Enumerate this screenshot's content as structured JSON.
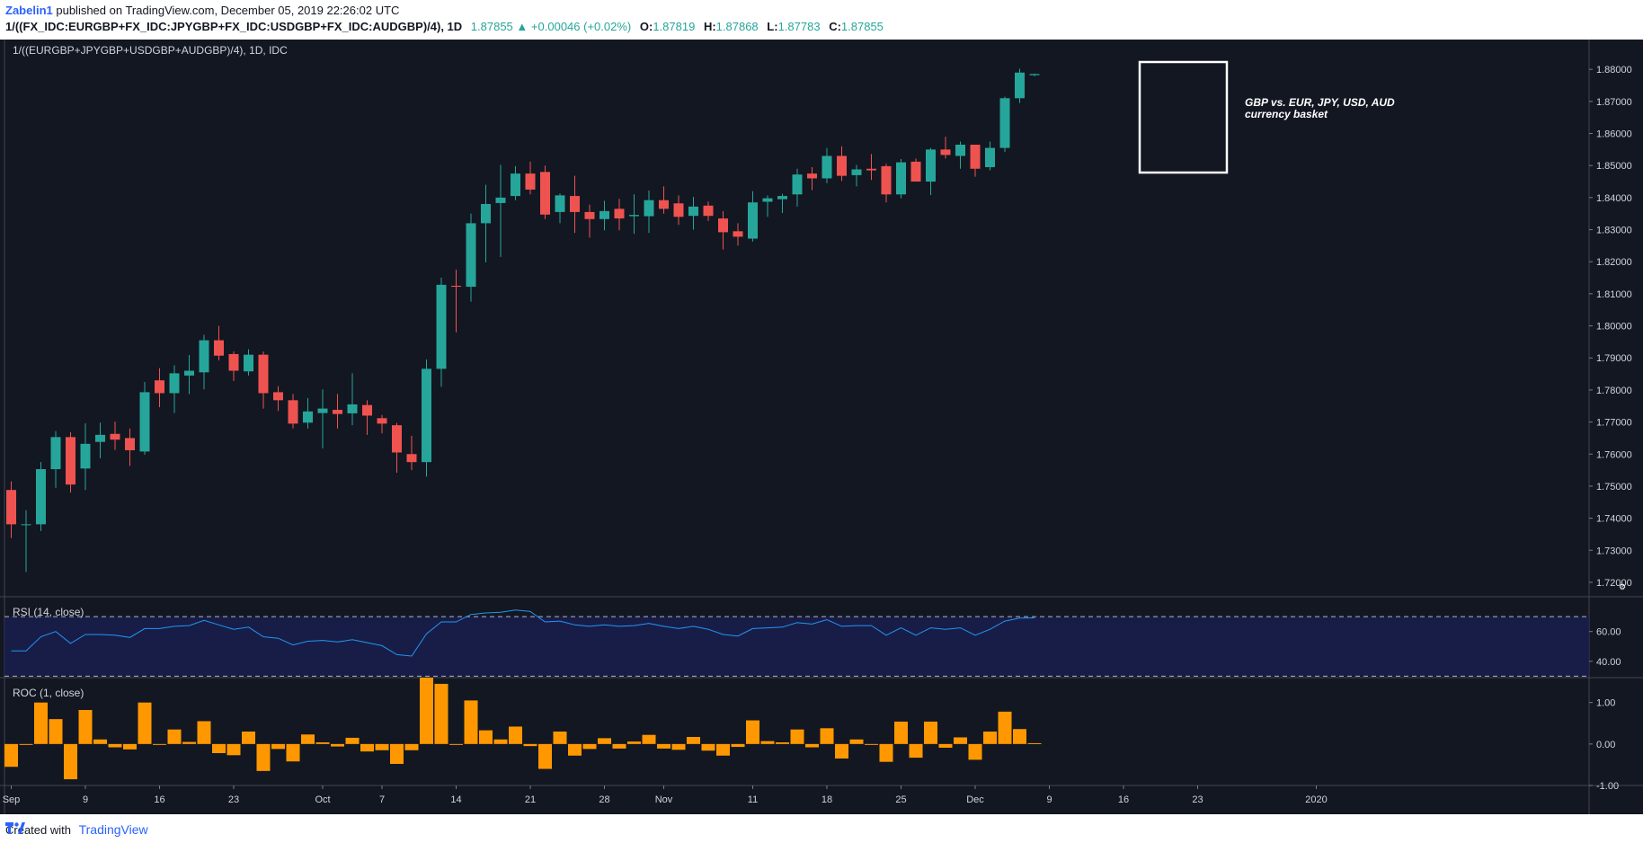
{
  "header": {
    "author": "Zabelin1",
    "published_text": " published on TradingView.com, December 05, 2019 22:26:02 UTC",
    "symbol": "1/((FX_IDC:EURGBP+FX_IDC:JPYGBP+FX_IDC:USDGBP+FX_IDC:AUDGBP)/4), 1D",
    "last": "1.87855",
    "change": "+0.00046 (+0.02%)",
    "ohlc": [
      {
        "label": "O:",
        "value": "1.87819"
      },
      {
        "label": "H:",
        "value": "1.87868"
      },
      {
        "label": "L:",
        "value": "1.87783"
      },
      {
        "label": "C:",
        "value": "1.87855"
      }
    ]
  },
  "main_pane": {
    "title": "1/((EURGBP+JPYGBP+USDGBP+AUDGBP)/4), 1D, IDC",
    "annotation": [
      "GBP vs. EUR, JPY, USD, AUD",
      "currency basket"
    ]
  },
  "rsi_pane": {
    "title": "RSI (14, close)",
    "ticks": [
      "60.00",
      "40.00"
    ]
  },
  "roc_pane": {
    "title": "ROC (1, close)",
    "ticks": [
      "1.00",
      "0.00",
      "-1.00"
    ]
  },
  "footer": {
    "created_with": "Created with",
    "brand": "TradingView"
  },
  "colors": {
    "background": "#131722",
    "up": "#26a69a",
    "down": "#ef5350",
    "rsi_line": "#2196f3",
    "roc_bars": "#ff9800"
  },
  "chart_data": [
    {
      "type": "candlestick",
      "title": "1/((EURGBP+JPYGBP+USDGBP+AUDGBP)/4), 1D, IDC",
      "x_tick_labels": [
        "Sep",
        "9",
        "16",
        "23",
        "Oct",
        "7",
        "14",
        "21",
        "28",
        "Nov",
        "11",
        "18",
        "25",
        "Dec",
        "9",
        "16",
        "23",
        "2020"
      ],
      "y_ticks": [
        1.72,
        1.73,
        1.74,
        1.75,
        1.76,
        1.77,
        1.78,
        1.79,
        1.8,
        1.81,
        1.82,
        1.83,
        1.84,
        1.85,
        1.86,
        1.87,
        1.88
      ],
      "ylim": [
        1.7155,
        1.8893
      ],
      "candles": [
        {
          "date": "2019-09-02",
          "o": 1.7488,
          "h": 1.7515,
          "l": 1.7338,
          "c": 1.7381
        },
        {
          "date": "2019-09-03",
          "o": 1.738,
          "h": 1.7425,
          "l": 1.7232,
          "c": 1.7381
        },
        {
          "date": "2019-09-04",
          "o": 1.7381,
          "h": 1.7575,
          "l": 1.736,
          "c": 1.7553
        },
        {
          "date": "2019-09-05",
          "o": 1.7553,
          "h": 1.7672,
          "l": 1.7495,
          "c": 1.7653
        },
        {
          "date": "2019-09-06",
          "o": 1.7653,
          "h": 1.7668,
          "l": 1.748,
          "c": 1.7505
        },
        {
          "date": "2019-09-09",
          "o": 1.7555,
          "h": 1.7696,
          "l": 1.7488,
          "c": 1.7632
        },
        {
          "date": "2019-09-10",
          "o": 1.7638,
          "h": 1.7698,
          "l": 1.7587,
          "c": 1.766
        },
        {
          "date": "2019-09-11",
          "o": 1.7663,
          "h": 1.7701,
          "l": 1.7613,
          "c": 1.7645
        },
        {
          "date": "2019-09-12",
          "o": 1.765,
          "h": 1.768,
          "l": 1.7563,
          "c": 1.7612
        },
        {
          "date": "2019-09-13",
          "o": 1.7608,
          "h": 1.7825,
          "l": 1.7598,
          "c": 1.7793
        },
        {
          "date": "2019-09-16",
          "o": 1.783,
          "h": 1.7868,
          "l": 1.7746,
          "c": 1.779
        },
        {
          "date": "2019-09-17",
          "o": 1.779,
          "h": 1.7877,
          "l": 1.7728,
          "c": 1.7852
        },
        {
          "date": "2019-09-18",
          "o": 1.7845,
          "h": 1.7909,
          "l": 1.7787,
          "c": 1.786
        },
        {
          "date": "2019-09-19",
          "o": 1.7855,
          "h": 1.7972,
          "l": 1.7802,
          "c": 1.7955
        },
        {
          "date": "2019-09-20",
          "o": 1.7955,
          "h": 1.8,
          "l": 1.7892,
          "c": 1.7907
        },
        {
          "date": "2019-09-23",
          "o": 1.7912,
          "h": 1.792,
          "l": 1.7828,
          "c": 1.786
        },
        {
          "date": "2019-09-24",
          "o": 1.7858,
          "h": 1.7927,
          "l": 1.7845,
          "c": 1.791
        },
        {
          "date": "2019-09-25",
          "o": 1.791,
          "h": 1.792,
          "l": 1.7742,
          "c": 1.779
        },
        {
          "date": "2019-09-26",
          "o": 1.7793,
          "h": 1.7812,
          "l": 1.7735,
          "c": 1.7768
        },
        {
          "date": "2019-09-27",
          "o": 1.7768,
          "h": 1.7787,
          "l": 1.768,
          "c": 1.7695
        },
        {
          "date": "2019-09-30",
          "o": 1.7698,
          "h": 1.7775,
          "l": 1.768,
          "c": 1.7733
        },
        {
          "date": "2019-10-01",
          "o": 1.7728,
          "h": 1.7802,
          "l": 1.7618,
          "c": 1.7742
        },
        {
          "date": "2019-10-02",
          "o": 1.7738,
          "h": 1.7787,
          "l": 1.768,
          "c": 1.7725
        },
        {
          "date": "2019-10-03",
          "o": 1.7727,
          "h": 1.7852,
          "l": 1.769,
          "c": 1.7755
        },
        {
          "date": "2019-10-04",
          "o": 1.7753,
          "h": 1.7768,
          "l": 1.766,
          "c": 1.772
        },
        {
          "date": "2019-10-07",
          "o": 1.7712,
          "h": 1.7722,
          "l": 1.7665,
          "c": 1.7695
        },
        {
          "date": "2019-10-08",
          "o": 1.769,
          "h": 1.7697,
          "l": 1.7542,
          "c": 1.7605
        },
        {
          "date": "2019-10-09",
          "o": 1.76,
          "h": 1.7657,
          "l": 1.755,
          "c": 1.7575
        },
        {
          "date": "2019-10-10",
          "o": 1.7575,
          "h": 1.7895,
          "l": 1.753,
          "c": 1.7866
        },
        {
          "date": "2019-10-11",
          "o": 1.7866,
          "h": 1.815,
          "l": 1.781,
          "c": 1.8128
        },
        {
          "date": "2019-10-14",
          "o": 1.8125,
          "h": 1.8175,
          "l": 1.798,
          "c": 1.8122
        },
        {
          "date": "2019-10-15",
          "o": 1.8122,
          "h": 1.835,
          "l": 1.8075,
          "c": 1.832
        },
        {
          "date": "2019-10-16",
          "o": 1.832,
          "h": 1.844,
          "l": 1.8198,
          "c": 1.838
        },
        {
          "date": "2019-10-17",
          "o": 1.8383,
          "h": 1.8502,
          "l": 1.8215,
          "c": 1.84
        },
        {
          "date": "2019-10-18",
          "o": 1.8405,
          "h": 1.8498,
          "l": 1.8392,
          "c": 1.8475
        },
        {
          "date": "2019-10-21",
          "o": 1.8475,
          "h": 1.8512,
          "l": 1.841,
          "c": 1.8425
        },
        {
          "date": "2019-10-22",
          "o": 1.848,
          "h": 1.85,
          "l": 1.8333,
          "c": 1.8347
        },
        {
          "date": "2019-10-23",
          "o": 1.8355,
          "h": 1.8413,
          "l": 1.832,
          "c": 1.8407
        },
        {
          "date": "2019-10-24",
          "o": 1.8405,
          "h": 1.8468,
          "l": 1.829,
          "c": 1.8355
        },
        {
          "date": "2019-10-25",
          "o": 1.8355,
          "h": 1.8378,
          "l": 1.8275,
          "c": 1.8333
        },
        {
          "date": "2019-10-28",
          "o": 1.8333,
          "h": 1.839,
          "l": 1.8298,
          "c": 1.8358
        },
        {
          "date": "2019-10-29",
          "o": 1.8365,
          "h": 1.8396,
          "l": 1.8298,
          "c": 1.8335
        },
        {
          "date": "2019-10-30",
          "o": 1.8342,
          "h": 1.841,
          "l": 1.8287,
          "c": 1.8346
        },
        {
          "date": "2019-10-31",
          "o": 1.8342,
          "h": 1.8422,
          "l": 1.829,
          "c": 1.8392
        },
        {
          "date": "2019-11-01",
          "o": 1.8392,
          "h": 1.8435,
          "l": 1.835,
          "c": 1.8365
        },
        {
          "date": "2019-11-04",
          "o": 1.8382,
          "h": 1.8407,
          "l": 1.8315,
          "c": 1.834
        },
        {
          "date": "2019-11-05",
          "o": 1.8343,
          "h": 1.8402,
          "l": 1.83,
          "c": 1.8372
        },
        {
          "date": "2019-11-06",
          "o": 1.8375,
          "h": 1.8388,
          "l": 1.8327,
          "c": 1.8343
        },
        {
          "date": "2019-11-07",
          "o": 1.8335,
          "h": 1.8358,
          "l": 1.8238,
          "c": 1.8292
        },
        {
          "date": "2019-11-08",
          "o": 1.8295,
          "h": 1.832,
          "l": 1.825,
          "c": 1.8278
        },
        {
          "date": "2019-11-11",
          "o": 1.8272,
          "h": 1.842,
          "l": 1.8263,
          "c": 1.8385
        },
        {
          "date": "2019-11-12",
          "o": 1.8387,
          "h": 1.8407,
          "l": 1.834,
          "c": 1.8398
        },
        {
          "date": "2019-11-13",
          "o": 1.8395,
          "h": 1.8412,
          "l": 1.8352,
          "c": 1.8405
        },
        {
          "date": "2019-11-14",
          "o": 1.841,
          "h": 1.849,
          "l": 1.8372,
          "c": 1.8472
        },
        {
          "date": "2019-11-15",
          "o": 1.8475,
          "h": 1.8495,
          "l": 1.8423,
          "c": 1.846
        },
        {
          "date": "2019-11-18",
          "o": 1.846,
          "h": 1.8555,
          "l": 1.8445,
          "c": 1.853
        },
        {
          "date": "2019-11-19",
          "o": 1.853,
          "h": 1.856,
          "l": 1.8452,
          "c": 1.8468
        },
        {
          "date": "2019-11-20",
          "o": 1.847,
          "h": 1.8502,
          "l": 1.8435,
          "c": 1.8488
        },
        {
          "date": "2019-11-21",
          "o": 1.849,
          "h": 1.8536,
          "l": 1.8455,
          "c": 1.8485
        },
        {
          "date": "2019-11-22",
          "o": 1.8498,
          "h": 1.8505,
          "l": 1.8385,
          "c": 1.841
        },
        {
          "date": "2019-11-25",
          "o": 1.841,
          "h": 1.852,
          "l": 1.8398,
          "c": 1.851
        },
        {
          "date": "2019-11-26",
          "o": 1.8512,
          "h": 1.8522,
          "l": 1.845,
          "c": 1.845
        },
        {
          "date": "2019-11-27",
          "o": 1.845,
          "h": 1.8555,
          "l": 1.8408,
          "c": 1.855
        },
        {
          "date": "2019-11-28",
          "o": 1.855,
          "h": 1.859,
          "l": 1.8522,
          "c": 1.8533
        },
        {
          "date": "2019-11-29",
          "o": 1.853,
          "h": 1.8575,
          "l": 1.849,
          "c": 1.8565
        },
        {
          "date": "2019-12-02",
          "o": 1.8565,
          "h": 1.8565,
          "l": 1.8465,
          "c": 1.849
        },
        {
          "date": "2019-12-03",
          "o": 1.8495,
          "h": 1.8575,
          "l": 1.8485,
          "c": 1.8555
        },
        {
          "date": "2019-12-04",
          "o": 1.8555,
          "h": 1.8715,
          "l": 1.8542,
          "c": 1.871
        },
        {
          "date": "2019-12-05",
          "o": 1.871,
          "h": 1.8802,
          "l": 1.8695,
          "c": 1.879
        },
        {
          "date": "2019-12-06",
          "o": 1.87819,
          "h": 1.87868,
          "l": 1.87783,
          "c": 1.87855
        }
      ]
    },
    {
      "type": "line",
      "title": "RSI (14, close)",
      "ylim": [
        29.0,
        83.4
      ],
      "dashed_levels": [
        30,
        70
      ],
      "y_ticks": [
        60,
        40
      ],
      "values": [
        47.0,
        47.0,
        56.5,
        60.0,
        52.0,
        58.0,
        58.0,
        57.5,
        56.0,
        62.0,
        62.0,
        63.5,
        64.0,
        67.5,
        64.5,
        61.5,
        63.0,
        56.5,
        55.5,
        51.0,
        53.5,
        54.0,
        53.0,
        54.5,
        52.5,
        50.5,
        44.5,
        43.5,
        58.5,
        66.5,
        66.5,
        71.5,
        72.5,
        73.0,
        74.5,
        73.5,
        66.5,
        67.0,
        64.5,
        63.5,
        64.5,
        63.5,
        64.0,
        65.5,
        63.5,
        62.0,
        63.5,
        61.5,
        58.0,
        57.0,
        62.0,
        62.5,
        63.0,
        66.0,
        65.0,
        68.0,
        63.5,
        64.0,
        64.0,
        57.5,
        62.5,
        57.5,
        62.5,
        61.5,
        62.5,
        57.5,
        61.5,
        67.0,
        69.0,
        69.2
      ]
    },
    {
      "type": "bar",
      "title": "ROC (1, close)",
      "ylim": [
        -1.0,
        1.6
      ],
      "y_ticks": [
        1.0,
        0.0,
        -1.0
      ],
      "values": [
        -0.55,
        0.0,
        1.0,
        0.6,
        -0.85,
        0.82,
        0.11,
        -0.08,
        -0.13,
        1.0,
        -0.02,
        0.35,
        0.05,
        0.55,
        -0.22,
        -0.27,
        0.3,
        -0.65,
        -0.12,
        -0.42,
        0.23,
        0.04,
        -0.06,
        0.15,
        -0.18,
        -0.15,
        -0.48,
        -0.15,
        1.6,
        1.45,
        -0.01,
        1.05,
        0.33,
        0.11,
        0.42,
        -0.05,
        -0.6,
        0.3,
        -0.28,
        -0.12,
        0.14,
        -0.11,
        0.06,
        0.22,
        -0.11,
        -0.14,
        0.17,
        -0.16,
        -0.28,
        -0.07,
        0.57,
        0.07,
        0.04,
        0.35,
        -0.08,
        0.38,
        -0.35,
        0.11,
        -0.02,
        -0.43,
        0.54,
        -0.33,
        0.54,
        -0.09,
        0.16,
        -0.38,
        0.3,
        0.78,
        0.36,
        0.02
      ]
    }
  ]
}
